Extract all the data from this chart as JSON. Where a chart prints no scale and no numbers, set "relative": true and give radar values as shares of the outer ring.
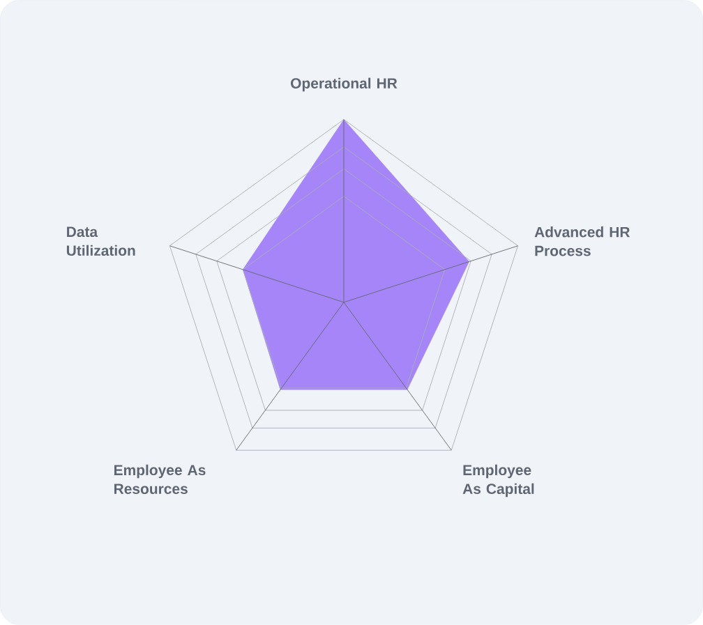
{
  "chart_data": {
    "type": "radar",
    "relative": true,
    "grid": true,
    "categories": [
      "Operational HR",
      "Advanced HR Process",
      "Employee As Capital",
      "Employee As Resources",
      "Data Utilization"
    ],
    "series": [
      {
        "color": "#a585f8",
        "values": [
          1.0,
          0.72,
          0.59,
          0.59,
          0.58
        ]
      }
    ]
  }
}
